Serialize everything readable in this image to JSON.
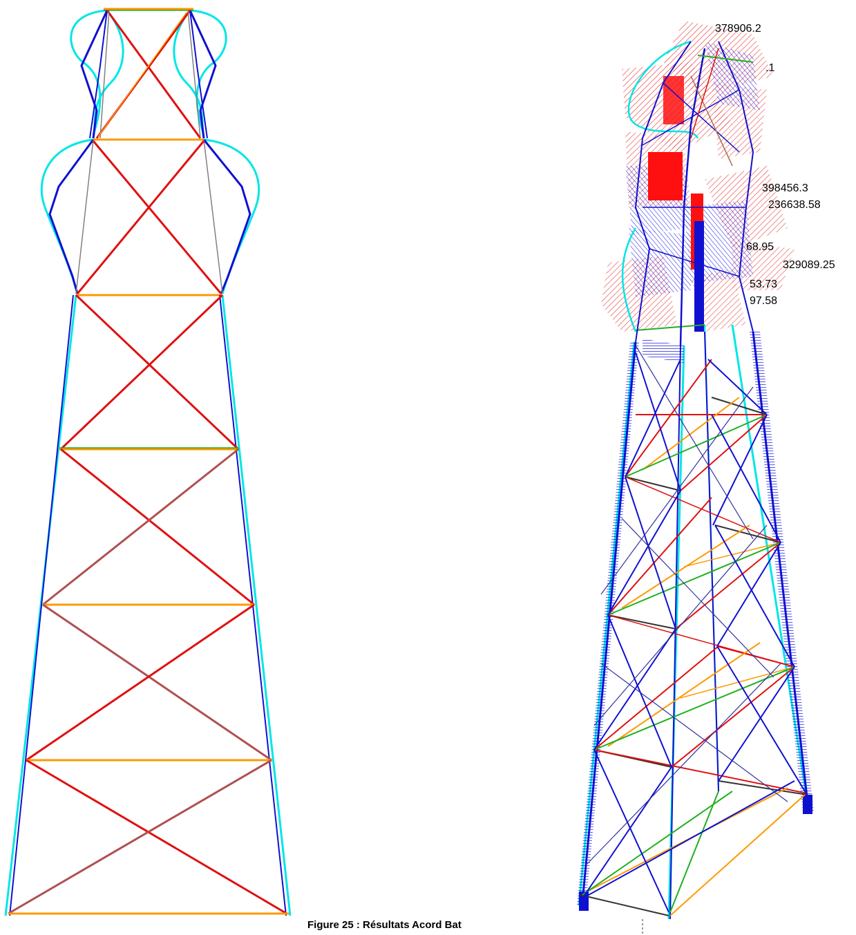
{
  "figure": {
    "caption": "Figure 25 : Résultats Acord Bat"
  },
  "left_view": {
    "view": "2D front elevation - deformed shape"
  },
  "right_view": {
    "view": "3D isometric - internal force diagrams",
    "value_labels": [
      "378906.2",
      "398456.3",
      "236638.58",
      "329089.25",
      "53.73",
      "97.58",
      ".1",
      "68.95"
    ]
  },
  "colors": {
    "frame_deformed": "#00e6e6",
    "leg_blue": "#1010d0",
    "diagonal_red": "#e01010",
    "diagonal_brown": "#b05050",
    "horizontal_orange": "#ff9900",
    "horizontal_green": "#20b020",
    "grey": "#808080",
    "dark": "#333333",
    "hatch_red": "#e02020",
    "hatch_blue": "#2020e0"
  }
}
